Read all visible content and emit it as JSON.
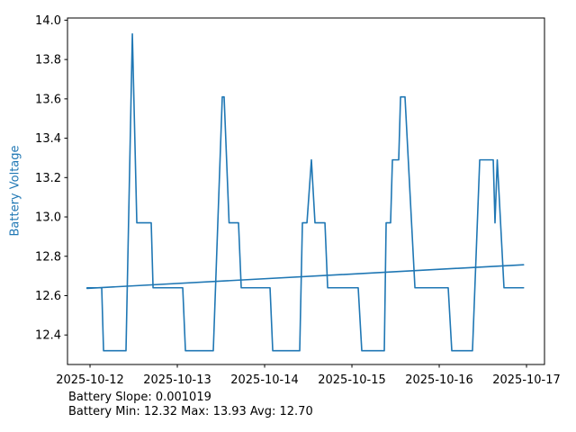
{
  "figure": {
    "background": "#ffffff",
    "line_color": "#1f77b4",
    "label_color": "#1f77b4",
    "axis_color": "#000000",
    "ylabel": "Battery Voltage",
    "annotation_line1": "Battery Slope: 0.001019",
    "annotation_line2": "Battery Min: 12.32 Max: 13.93 Avg: 12.70"
  },
  "chart_data": {
    "type": "line",
    "title": "",
    "xlabel": "",
    "ylabel": "Battery Voltage",
    "grid": false,
    "legend": null,
    "x_unit": "days since 2025-10-12 00:00",
    "xlim": [
      -0.258,
      5.206
    ],
    "ylim": [
      12.25,
      14.011
    ],
    "x_tick_positions": [
      0,
      1,
      2,
      3,
      4,
      5
    ],
    "x_tick_labels": [
      "2025-10-12",
      "2025-10-13",
      "2025-10-14",
      "2025-10-15",
      "2025-10-16",
      "2025-10-17"
    ],
    "y_tick_values": [
      12.4,
      12.6,
      12.8,
      13.0,
      13.2,
      13.4,
      13.6,
      13.8,
      14.0
    ],
    "y_tick_labels": [
      "12.4",
      "12.6",
      "12.8",
      "13.0",
      "13.2",
      "13.4",
      "13.6",
      "13.8",
      "14.0"
    ],
    "series": [
      {
        "name": "battery_voltage",
        "points": [
          [
            -0.034,
            12.64
          ],
          [
            0.134,
            12.64
          ],
          [
            0.155,
            12.32
          ],
          [
            0.412,
            12.32
          ],
          [
            0.485,
            13.93
          ],
          [
            0.536,
            12.97
          ],
          [
            0.701,
            12.97
          ],
          [
            0.722,
            12.64
          ],
          [
            1.062,
            12.64
          ],
          [
            1.093,
            12.32
          ],
          [
            1.412,
            12.32
          ],
          [
            1.515,
            13.61
          ],
          [
            1.536,
            13.61
          ],
          [
            1.593,
            12.97
          ],
          [
            1.701,
            12.97
          ],
          [
            1.732,
            12.64
          ],
          [
            2.062,
            12.64
          ],
          [
            2.093,
            12.32
          ],
          [
            2.402,
            12.32
          ],
          [
            2.433,
            12.97
          ],
          [
            2.485,
            12.97
          ],
          [
            2.536,
            13.29
          ],
          [
            2.577,
            12.97
          ],
          [
            2.691,
            12.97
          ],
          [
            2.722,
            12.64
          ],
          [
            3.072,
            12.64
          ],
          [
            3.113,
            12.32
          ],
          [
            3.371,
            12.32
          ],
          [
            3.392,
            12.97
          ],
          [
            3.443,
            12.97
          ],
          [
            3.464,
            13.29
          ],
          [
            3.536,
            13.29
          ],
          [
            3.557,
            13.61
          ],
          [
            3.608,
            13.61
          ],
          [
            3.722,
            12.64
          ],
          [
            4.103,
            12.64
          ],
          [
            4.144,
            12.32
          ],
          [
            4.381,
            12.32
          ],
          [
            4.464,
            13.29
          ],
          [
            4.619,
            13.29
          ],
          [
            4.639,
            12.97
          ],
          [
            4.665,
            13.29
          ],
          [
            4.742,
            12.64
          ],
          [
            4.966,
            12.64
          ]
        ]
      },
      {
        "name": "trend",
        "points": [
          [
            -0.034,
            12.637
          ],
          [
            4.966,
            12.757
          ]
        ]
      }
    ],
    "stats": {
      "slope": 0.001019,
      "min": 12.32,
      "max": 13.93,
      "avg": 12.7
    }
  }
}
